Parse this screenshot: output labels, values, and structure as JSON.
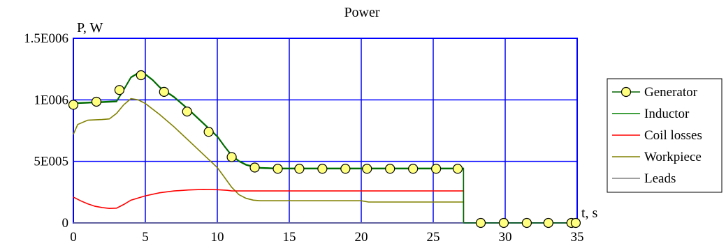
{
  "chart_data": {
    "type": "line",
    "title": "Power",
    "xlabel": "t, s",
    "ylabel": "P, W",
    "xlim": [
      0,
      35
    ],
    "ylim": [
      0,
      1500000
    ],
    "xticks": [
      0,
      5,
      10,
      15,
      20,
      25,
      30,
      35
    ],
    "xtick_labels": [
      "0",
      "5",
      "10",
      "15",
      "20",
      "25",
      "30",
      "35"
    ],
    "yticks": [
      0,
      500000,
      1000000,
      1500000
    ],
    "ytick_labels": [
      "0",
      "5E005",
      "1E006",
      "1.5E006"
    ],
    "grid": true,
    "legend_position": "right",
    "series": [
      {
        "name": "Generator",
        "color": "#006400",
        "marker": "circle",
        "marker_fill": "#ffff80",
        "x": [
          0,
          1,
          2,
          3,
          3.5,
          4,
          4.5,
          5,
          5.5,
          6,
          7,
          8,
          9,
          10,
          10.5,
          11,
          11.5,
          12,
          12.5,
          13,
          14,
          15,
          16,
          17,
          18,
          19,
          20,
          21,
          22,
          23,
          24,
          25,
          26,
          27.1
        ],
        "y": [
          970000,
          975000,
          980000,
          985000,
          1080000,
          1180000,
          1215000,
          1205000,
          1160000,
          1100000,
          1020000,
          920000,
          810000,
          700000,
          620000,
          545000,
          500000,
          470000,
          455000,
          445000,
          440000,
          440000,
          440000,
          440000,
          440000,
          440000,
          440000,
          440000,
          440000,
          440000,
          440000,
          440000,
          440000,
          440000
        ]
      },
      {
        "name": "Inductor",
        "color": "#008000",
        "x": [
          0,
          1,
          2,
          3,
          3.5,
          4,
          4.5,
          5,
          5.5,
          6,
          7,
          8,
          9,
          10,
          10.5,
          11,
          11.5,
          12,
          12.5,
          13,
          14,
          15,
          16,
          17,
          18,
          19,
          20,
          21,
          22,
          23,
          24,
          25,
          26,
          27.1
        ],
        "y": [
          975000,
          980000,
          985000,
          990000,
          1085000,
          1185000,
          1220000,
          1210000,
          1165000,
          1105000,
          1025000,
          925000,
          815000,
          705000,
          625000,
          550000,
          505000,
          475000,
          460000,
          450000,
          445000,
          445000,
          445000,
          445000,
          445000,
          445000,
          445000,
          445000,
          445000,
          445000,
          445000,
          445000,
          445000,
          445000
        ]
      },
      {
        "name": "Coil losses",
        "color": "#ff0000",
        "x": [
          0,
          0.5,
          1,
          1.5,
          2,
          2.5,
          3,
          3.5,
          4,
          5,
          6,
          7,
          8,
          9,
          10,
          10.7,
          11,
          27.1
        ],
        "y": [
          210000,
          180000,
          155000,
          135000,
          125000,
          118000,
          120000,
          150000,
          185000,
          220000,
          245000,
          260000,
          268000,
          272000,
          270000,
          265000,
          260000,
          260000
        ]
      },
      {
        "name": "Workpiece",
        "color": "#808000",
        "x": [
          0,
          0.3,
          1,
          2,
          2.5,
          3,
          3.5,
          4,
          4.5,
          5,
          6,
          7,
          8,
          9,
          10,
          10.5,
          11,
          11.5,
          12,
          12.5,
          13,
          20,
          20.5,
          27.1
        ],
        "y": [
          720000,
          800000,
          835000,
          840000,
          845000,
          890000,
          960000,
          1010000,
          1000000,
          970000,
          880000,
          780000,
          670000,
          560000,
          450000,
          370000,
          290000,
          230000,
          200000,
          185000,
          180000,
          180000,
          170000,
          170000
        ]
      },
      {
        "name": "Leads",
        "color": "#808080",
        "x": [
          0,
          35
        ],
        "y": [
          0,
          0
        ]
      }
    ],
    "generator_markers": {
      "x": [
        0,
        1.6,
        3.2,
        4.7,
        6.3,
        7.9,
        9.4,
        11.0,
        12.6,
        14.2,
        15.7,
        17.3,
        18.9,
        20.4,
        22.0,
        23.6,
        25.2,
        26.7,
        28.3,
        29.9,
        31.5,
        33.0,
        34.6,
        34.9
      ],
      "y": [
        960000,
        985000,
        1080000,
        1200000,
        1065000,
        905000,
        740000,
        535000,
        450000,
        440000,
        440000,
        440000,
        440000,
        440000,
        440000,
        440000,
        440000,
        440000,
        0,
        0,
        0,
        0,
        0,
        0
      ]
    }
  }
}
